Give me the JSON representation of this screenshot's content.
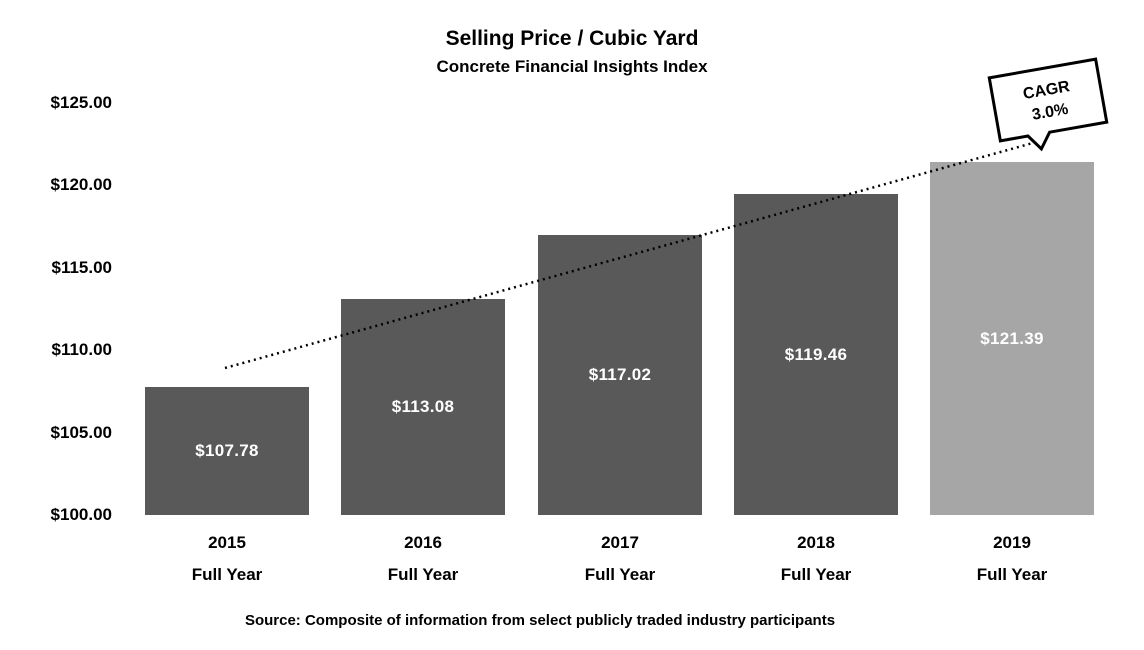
{
  "chart_data": {
    "type": "bar",
    "title": "Selling Price / Cubic Yard",
    "subtitle": "Concrete Financial Insights Index",
    "categories": [
      "2015",
      "2016",
      "2017",
      "2018",
      "2019"
    ],
    "category_sublabels": [
      "Full Year",
      "Full Year",
      "Full Year",
      "Full Year",
      "Full Year"
    ],
    "values": [
      107.78,
      113.08,
      117.02,
      119.46,
      121.39
    ],
    "bar_labels": [
      "$107.78",
      "$113.08",
      "$117.02",
      "$119.46",
      "$121.39"
    ],
    "bar_colors": [
      "#595959",
      "#595959",
      "#595959",
      "#595959",
      "#A6A6A6"
    ],
    "bar_label_color": "#FFFFFF",
    "y_ticks": [
      "$125.00",
      "$120.00",
      "$115.00",
      "$110.00",
      "$105.00",
      "$100.00"
    ],
    "ylim": [
      100,
      125
    ],
    "xlabel": "",
    "ylabel": "",
    "grid": false,
    "legend": "none",
    "trendline": {
      "style": "dotted",
      "color": "#000000",
      "annotation_line1": "CAGR",
      "annotation_line2": "3.0%",
      "cagr_percent": 3.0
    },
    "source": "Source:  Composite of information from select publicly traded industry participants"
  }
}
